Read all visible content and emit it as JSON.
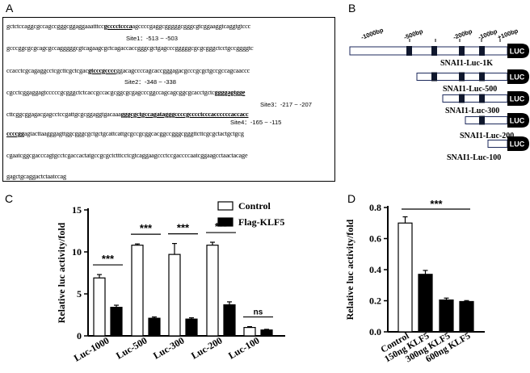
{
  "panels": {
    "a": "A",
    "b": "B",
    "c": "C",
    "d": "D"
  },
  "sequence": {
    "lines": [
      {
        "parts": [
          {
            "t": "gctctccaggcgccagccgggcggaggaaatttcc"
          },
          {
            "t": "gcccctccca",
            "u": true
          },
          {
            "t": "agccccgaggcgggggcgggcgtcggaaggtcaggtgtccc"
          }
        ]
      },
      {
        "parts": [
          {
            "t": "gcccggcgcgcagcgccagggggcgtcagaagcgctcagaccaccgggcgctgagcccgggggcgcgcgggctcctgccggggtc"
          }
        ]
      },
      {
        "parts": [
          {
            "t": "ccacctcgcagaggcctcgcttcgctcgac"
          },
          {
            "t": "gtcccgcccc",
            "u": true
          },
          {
            "t": "ggacagccccagcaccgggagacgcccgcgctgccgccagcaaccc"
          }
        ]
      },
      {
        "parts": [
          {
            "t": "cgcctcggaggagtcccccgcgggctctcaccgccacgcggcgcgagcccggccagcagcggcgcacctgctc"
          },
          {
            "t": "ggggagtgge",
            "u": true
          }
        ]
      },
      {
        "parts": [
          {
            "t": "cttcggcggagacgagcctccgattgcgcggaggtgacaaa"
          },
          {
            "t": "gggcgctgccagatagggccccgcccctcccaccccccaccacc",
            "u": true
          }
        ]
      },
      {
        "parts": [
          {
            "t": "ccccgg",
            "u": true
          },
          {
            "t": "agtacttaagggagttggcgggcgctgctgcattcattgcgccgcggcacggccgggcgggttcttcgcgctactgctgcg"
          }
        ]
      },
      {
        "parts": [
          {
            "t": "cgaatcggcgacccagtgcctcgaccactatgccgcgctctttcctcgtcaggaagccctccgaccccaatcggaagcctaactacage"
          }
        ]
      },
      {
        "parts": [
          {
            "t": "gagctgcaggactctaatccag"
          }
        ]
      }
    ],
    "sites": [
      {
        "label": "Site1",
        "range": "-513 ~ -503"
      },
      {
        "label": "Site2",
        "range": "-348 ~ -338"
      },
      {
        "label": "Site3",
        "range": "-217 ~ -207"
      },
      {
        "label": "Site4",
        "range": "-165 ~ -115"
      }
    ]
  },
  "constructs": {
    "scale_labels": [
      "-1000bp",
      "-500bp",
      "-200bp",
      "-100bp",
      "+100bp"
    ],
    "luc_label": "LUC",
    "items": [
      {
        "name": "SNAI1-Luc-1K",
        "sites": 4
      },
      {
        "name": "SNAI1-Luc-500",
        "sites": 4
      },
      {
        "name": "SNAI1-Luc-300",
        "sites": 2
      },
      {
        "name": "SNAI1-Luc-200",
        "sites": 1
      },
      {
        "name": "SNAI1-Luc-100",
        "sites": 0
      }
    ]
  },
  "chart_data": [
    {
      "panel": "C",
      "type": "bar",
      "categories": [
        "Luc-1000",
        "Luc-500",
        "Luc-300",
        "Luc-200",
        "Luc-100"
      ],
      "series": [
        {
          "name": "Control",
          "values": [
            6.9,
            10.8,
            9.7,
            10.8,
            1.0
          ],
          "errors": [
            0.4,
            0.15,
            1.3,
            0.35,
            0.1
          ],
          "color": "#ffffff"
        },
        {
          "name": "Flag-KLF5",
          "values": [
            3.4,
            2.1,
            2.0,
            3.7,
            0.7
          ],
          "errors": [
            0.25,
            0.15,
            0.15,
            0.35,
            0.08
          ],
          "color": "#000000"
        }
      ],
      "ylabel": "Relative luc activity/fold",
      "ylim": [
        0,
        15
      ],
      "yticks": [
        "0",
        "5",
        "10",
        "15"
      ],
      "significance": [
        "***",
        "***",
        "***",
        "***",
        "ns"
      ],
      "legend_position": "top-right"
    },
    {
      "panel": "D",
      "type": "bar",
      "categories": [
        "Control",
        "150ng KLF5",
        "300ng KLF5",
        "600ng KLF5"
      ],
      "values": [
        0.7,
        0.37,
        0.205,
        0.195
      ],
      "errors": [
        0.04,
        0.025,
        0.012,
        0.006
      ],
      "colors": [
        "#ffffff",
        "#000000",
        "#000000",
        "#000000"
      ],
      "ylabel": "Relative luc activity/fold",
      "ylim": [
        0,
        0.8
      ],
      "yticks": [
        "0.0",
        "0.2",
        "0.4",
        "0.6",
        "0.8"
      ],
      "significance": "***"
    }
  ]
}
